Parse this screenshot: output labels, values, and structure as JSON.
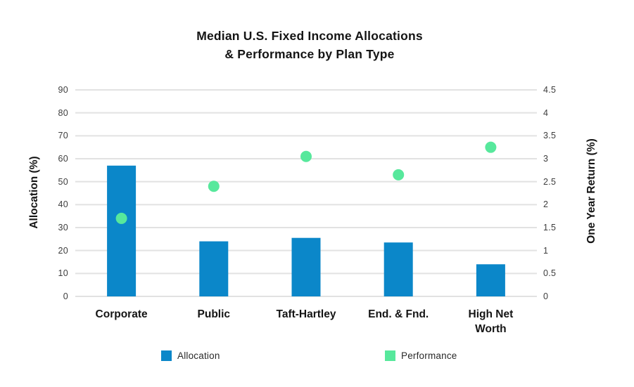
{
  "chart_data": {
    "type": "bar",
    "title": "Median U.S. Fixed Income Allocations & Performance by Plan Type",
    "title_lines": [
      "Median U.S. Fixed Income Allocations",
      "& Performance by Plan Type"
    ],
    "categories": [
      "Corporate",
      "Public",
      "Taft-Hartley",
      "End. & Fnd.",
      "High Net Worth"
    ],
    "category_label_lines": [
      [
        "Corporate"
      ],
      [
        "Public"
      ],
      [
        "Taft-Hartley"
      ],
      [
        "End. & Fnd."
      ],
      [
        "High Net",
        "Worth"
      ]
    ],
    "series": [
      {
        "name": "Allocation",
        "kind": "bar",
        "axis": "left",
        "values": [
          57,
          24,
          25.5,
          23.5,
          14
        ]
      },
      {
        "name": "Performance",
        "kind": "scatter",
        "axis": "right",
        "values": [
          1.7,
          2.4,
          3.05,
          2.65,
          3.25
        ]
      }
    ],
    "left_axis": {
      "label": "Allocation (%)",
      "range": [
        0,
        90
      ],
      "ticks": [
        0,
        10,
        20,
        30,
        40,
        50,
        60,
        70,
        80,
        90
      ]
    },
    "right_axis": {
      "label": "One Year Return (%)",
      "range": [
        0,
        4.5
      ],
      "ticks": [
        0,
        0.5,
        1,
        1.5,
        2,
        2.5,
        3,
        3.5,
        4,
        4.5
      ],
      "tick_labels": [
        "0",
        "0.5",
        "1",
        "1.5",
        "2",
        "2.5",
        "3",
        "3.5",
        "4",
        "4.5"
      ]
    },
    "grid": true,
    "legend_position": "bottom",
    "legend": [
      {
        "label": "Allocation",
        "color": "#0b87c9"
      },
      {
        "label": "Performance",
        "color": "#57e89c"
      }
    ],
    "colors": {
      "bar": "#0b87c9",
      "dot": "#57e89c",
      "grid": "#e2e2e2",
      "background": "#ffffff"
    }
  }
}
